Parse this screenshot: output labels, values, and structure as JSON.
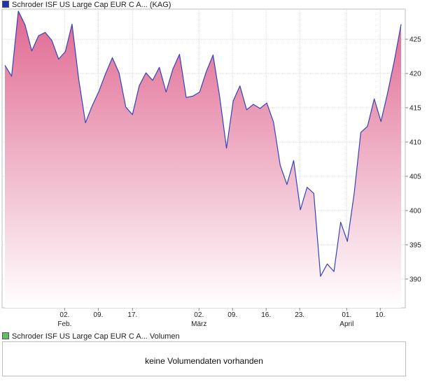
{
  "legend": {
    "price_label": "Schroder ISF US Large Cap EUR C A... (KAG)",
    "price_color": "#2233aa",
    "volume_label": "Schroder ISF US Large Cap EUR C A... Volumen",
    "volume_color": "#66bb66"
  },
  "volume_panel": {
    "message": "keine Volumendaten vorhanden"
  },
  "chart_data": {
    "type": "area",
    "title": "Schroder ISF US Large Cap EUR C A... (KAG)",
    "xlabel": "",
    "ylabel": "",
    "ylim": [
      385.8,
      429.4
    ],
    "grid": true,
    "y_ticks": [
      390,
      395,
      400,
      405,
      410,
      415,
      420,
      425
    ],
    "x_day_ticks": [
      {
        "label": "02.",
        "index": 8.9
      },
      {
        "label": "09.",
        "index": 13.9
      },
      {
        "label": "17.",
        "index": 19.0
      },
      {
        "label": "02.",
        "index": 28.9
      },
      {
        "label": "09.",
        "index": 33.9
      },
      {
        "label": "16.",
        "index": 38.9
      },
      {
        "label": "23.",
        "index": 43.9
      },
      {
        "label": "01.",
        "index": 50.9
      },
      {
        "label": "10.",
        "index": 55.9
      }
    ],
    "x_month_ticks": [
      {
        "label": "Feb.",
        "index": 8.9
      },
      {
        "label": "März",
        "index": 28.9
      },
      {
        "label": "April",
        "index": 50.9
      }
    ],
    "series": [
      {
        "name": "Schroder ISF US Large Cap EUR C A... (KAG)",
        "line_color": "#3344bb",
        "fill_top": "#e06890",
        "fill_bottom": "#ffffff",
        "values": [
          421.2,
          419.6,
          429.1,
          427.1,
          423.3,
          425.5,
          426.0,
          424.8,
          422.1,
          423.2,
          427.2,
          419.1,
          412.8,
          415.3,
          417.4,
          420.0,
          422.3,
          420.1,
          415.1,
          414.0,
          418.2,
          420.1,
          419.0,
          420.9,
          417.3,
          420.6,
          422.8,
          416.5,
          416.7,
          417.3,
          420.3,
          422.7,
          416.5,
          409.1,
          416.0,
          418.2,
          414.7,
          415.5,
          414.9,
          415.7,
          412.9,
          406.6,
          403.8,
          407.3,
          400.1,
          403.4,
          402.5,
          390.4,
          392.2,
          391.1,
          398.3,
          395.5,
          402.4,
          411.4,
          412.3,
          416.3,
          413.0,
          417.2,
          421.9,
          427.2
        ]
      }
    ]
  }
}
